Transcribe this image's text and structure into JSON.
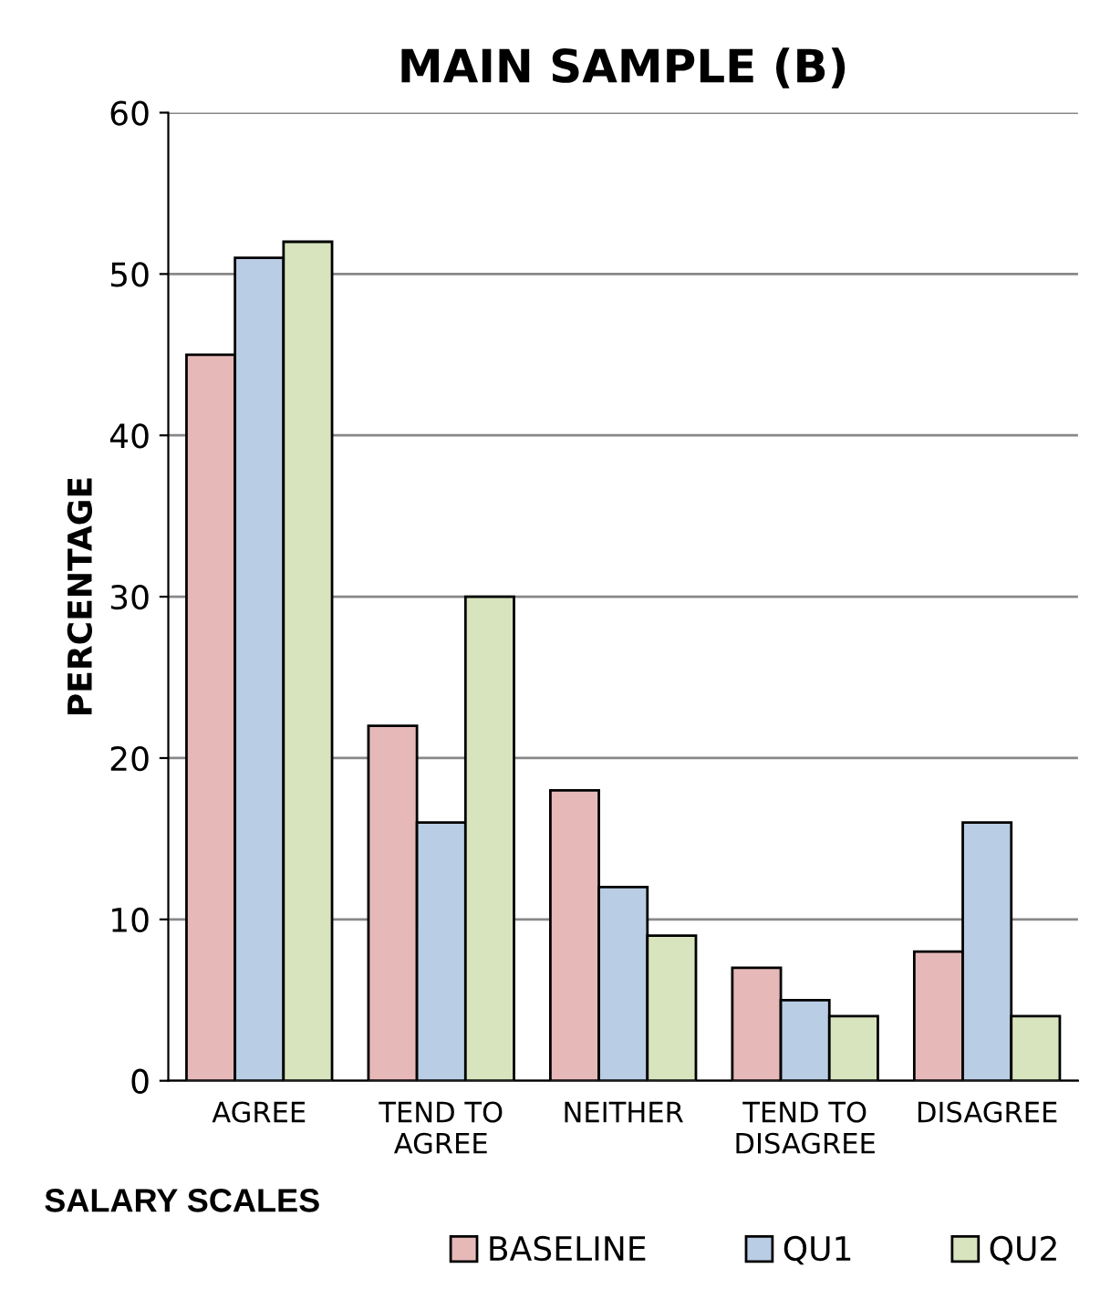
{
  "chart_data": {
    "type": "bar",
    "title": "MAIN SAMPLE (B)",
    "xlabel": "SALARY SCALES",
    "ylabel": "PERCENTAGE",
    "categories": [
      "AGREE",
      "TEND TO\nAGREE",
      "NEITHER",
      "TEND TO\nDISAGREE",
      "DISAGREE"
    ],
    "series": [
      {
        "name": "BASELINE",
        "color": "#e6b9b8",
        "values": [
          45,
          22,
          18,
          7,
          8
        ]
      },
      {
        "name": "QU1",
        "color": "#b9cde5",
        "values": [
          51,
          16,
          12,
          5,
          16
        ]
      },
      {
        "name": "QU2",
        "color": "#d7e4bd",
        "values": [
          52,
          30,
          9,
          4,
          4
        ]
      }
    ],
    "ylim": [
      0,
      60
    ],
    "yticks": [
      0,
      10,
      20,
      30,
      40,
      50,
      60
    ],
    "grid": "y",
    "legend": "bottom"
  }
}
